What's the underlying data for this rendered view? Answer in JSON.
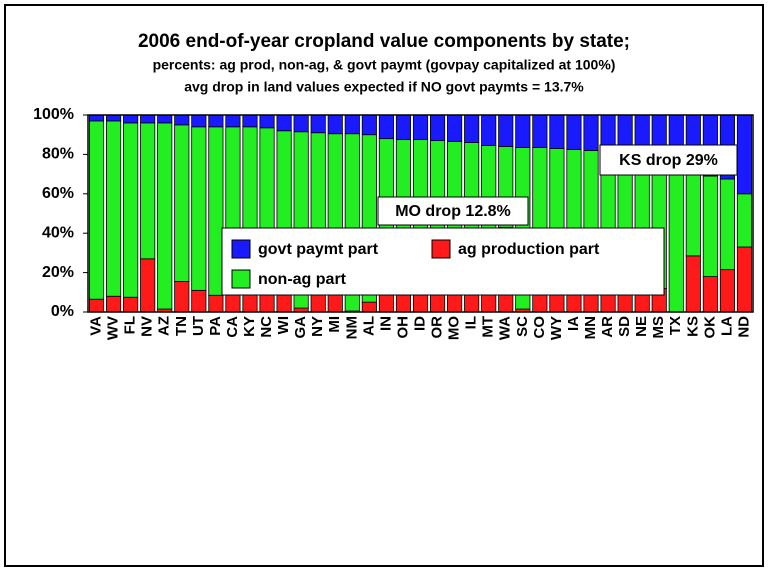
{
  "chart_data": {
    "type": "stacked_bar",
    "title": "2006 end-of-year cropland value components by state;",
    "subtitle": "percents:  ag prod, non-ag, & govt paymt (govpay capitalized at 100%)",
    "subtitle2": "avg drop in land values expected if NO govt paymts = 13.7%",
    "annotations": [
      "MO drop 12.8%",
      "KS drop 29%"
    ],
    "categories": [
      "VA",
      "WV",
      "FL",
      "NV",
      "AZ",
      "TN",
      "UT",
      "PA",
      "CA",
      "KY",
      "NC",
      "WI",
      "GA",
      "NY",
      "MI",
      "NM",
      "AL",
      "IN",
      "OH",
      "ID",
      "OR",
      "MO",
      "IL",
      "MT",
      "WA",
      "SC",
      "CO",
      "WY",
      "IA",
      "MN",
      "AR",
      "SD",
      "NE",
      "MS",
      "TX",
      "KS",
      "OK",
      "LA",
      "ND"
    ],
    "series": [
      {
        "name": "ag production part",
        "color": "#ff1a1a",
        "values": [
          6.5,
          8,
          7.5,
          27,
          1.5,
          15.5,
          11,
          8.5,
          36,
          25.5,
          9,
          14,
          2,
          13,
          9.5,
          0.5,
          5,
          32,
          29,
          33.5,
          39,
          30.5,
          36.5,
          15.5,
          43,
          1.5,
          15,
          30.5,
          36.5,
          29.5,
          21,
          28,
          36,
          12,
          0,
          28.5,
          18,
          21.5,
          33
        ]
      },
      {
        "name": "non-ag part",
        "color": "#22ee22",
        "values": [
          90.5,
          89,
          88.5,
          69,
          94.5,
          79.5,
          83,
          85.5,
          58,
          68.5,
          84.5,
          78,
          89.5,
          78,
          81,
          90,
          85,
          56,
          58.5,
          54,
          48,
          56,
          49.5,
          69,
          41,
          82,
          68.5,
          52.5,
          46,
          52.5,
          56,
          48,
          39.5,
          62.5,
          73.5,
          41.5,
          51,
          46,
          27
        ]
      },
      {
        "name": "govt paymt part",
        "color": "#1a1aff",
        "values": [
          3,
          3,
          4,
          4,
          4,
          5,
          6,
          6,
          6,
          6,
          6.5,
          8,
          8.5,
          9,
          9.5,
          9.5,
          10,
          12,
          12.5,
          12.5,
          13,
          13.5,
          14,
          15.5,
          16,
          16.5,
          16.5,
          17,
          17.5,
          18,
          23,
          24,
          24.5,
          25.5,
          26.5,
          30,
          31,
          32.5,
          40
        ]
      }
    ],
    "ylim": [
      0,
      100
    ],
    "yticks": [
      {
        "value": 0,
        "label": "0%"
      },
      {
        "value": 20,
        "label": "20%"
      },
      {
        "value": 40,
        "label": "40%"
      },
      {
        "value": 60,
        "label": "60%"
      },
      {
        "value": 80,
        "label": "80%"
      },
      {
        "value": 100,
        "label": "100%"
      }
    ],
    "grid": false
  }
}
